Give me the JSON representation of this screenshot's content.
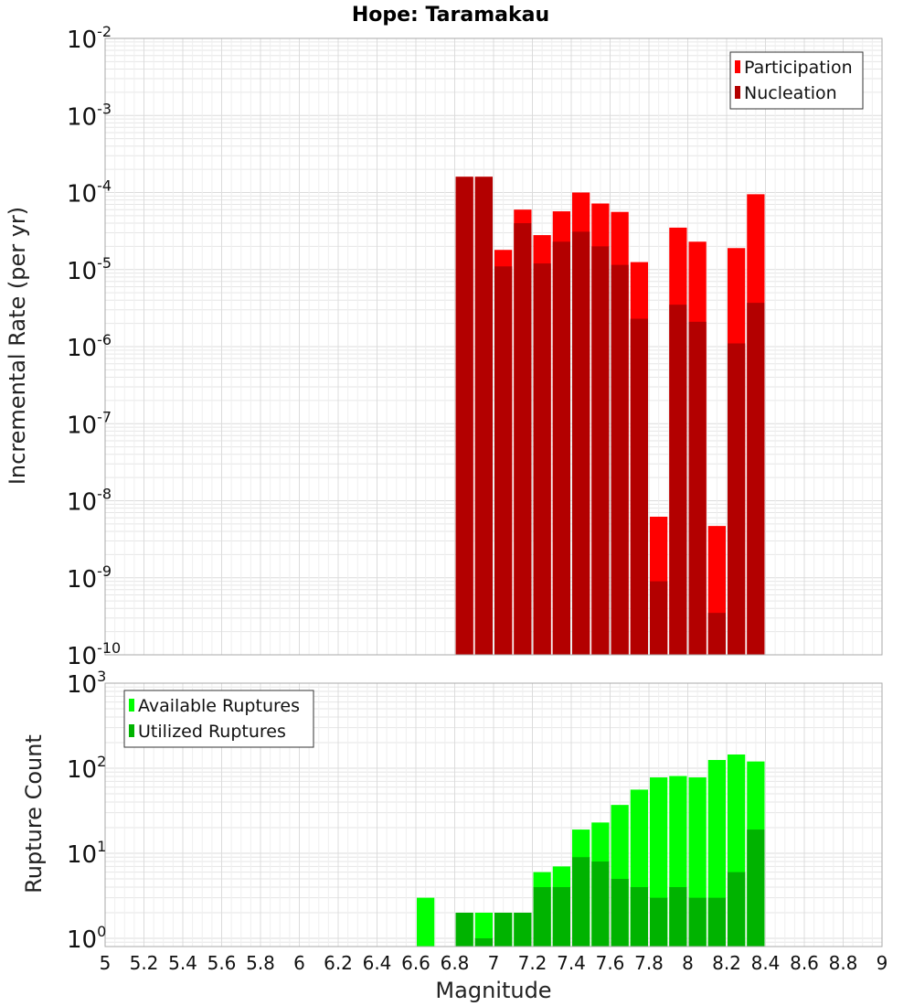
{
  "title": "Hope: Taramakau",
  "xlabel": "Magnitude",
  "xticks": [
    "5",
    "5.2",
    "5.4",
    "5.6",
    "5.8",
    "6",
    "6.2",
    "6.4",
    "6.6",
    "6.8",
    "7",
    "7.2",
    "7.4",
    "7.6",
    "7.8",
    "8",
    "8.2",
    "8.4",
    "8.6",
    "8.8",
    "9"
  ],
  "colors": {
    "participation": "#ff0000",
    "nucleation": "#b30000",
    "available": "#00ff00",
    "utilized": "#00b300",
    "grid": "#e6e6e6",
    "frame": "#aaaaaa"
  },
  "chart_data": [
    {
      "type": "bar",
      "panel": "top",
      "ylabel": "Incremental Rate (per yr)",
      "yscale": "log",
      "ylim": [
        1e-10,
        0.01
      ],
      "xlim": [
        5,
        9
      ],
      "ytick_base": "10",
      "ytick_exponents": [
        "-10",
        "-9",
        "-8",
        "-7",
        "-6",
        "-5",
        "-4",
        "-3",
        "-2"
      ],
      "legend_position": "top-right",
      "x": [
        6.85,
        6.95,
        7.05,
        7.15,
        7.25,
        7.35,
        7.45,
        7.55,
        7.65,
        7.75,
        7.85,
        7.95,
        8.05,
        8.15,
        8.25,
        8.35
      ],
      "series": [
        {
          "name": "Participation",
          "color_key": "participation",
          "values": [
            0.00016,
            0.00016,
            1.8e-05,
            6e-05,
            2.8e-05,
            5.7e-05,
            0.0001,
            7.2e-05,
            5.6e-05,
            1.25e-05,
            6.2e-09,
            3.5e-05,
            2.3e-05,
            4.7e-09,
            1.9e-05,
            9.5e-05
          ]
        },
        {
          "name": "Nucleation",
          "color_key": "nucleation",
          "values": [
            0.00016,
            0.00016,
            1.1e-05,
            4e-05,
            1.2e-05,
            2.3e-05,
            3.1e-05,
            2e-05,
            1.15e-05,
            2.3e-06,
            9e-10,
            3.5e-06,
            2.1e-06,
            3.5e-10,
            1.1e-06,
            3.7e-06
          ]
        }
      ]
    },
    {
      "type": "bar",
      "panel": "bottom",
      "ylabel": "Rupture Count",
      "yscale": "log",
      "ylim": [
        0.8,
        1000
      ],
      "xlim": [
        5,
        9
      ],
      "ytick_base": "10",
      "ytick_exponents": [
        "0",
        "1",
        "2",
        "3"
      ],
      "legend_position": "top-left",
      "x": [
        6.65,
        6.85,
        6.95,
        7.05,
        7.15,
        7.25,
        7.35,
        7.45,
        7.55,
        7.65,
        7.75,
        7.85,
        7.95,
        8.05,
        8.15,
        8.25,
        8.35
      ],
      "series": [
        {
          "name": "Available Ruptures",
          "color_key": "available",
          "values": [
            3,
            2,
            2,
            2,
            2,
            6,
            7,
            19,
            23,
            37,
            56,
            78,
            81,
            78,
            125,
            145,
            120
          ]
        },
        {
          "name": "Utilized Ruptures",
          "color_key": "utilized",
          "values": [
            0,
            2,
            1,
            2,
            2,
            4,
            4,
            9,
            8,
            5,
            4,
            3,
            4,
            3,
            3,
            6,
            19
          ]
        }
      ]
    }
  ]
}
